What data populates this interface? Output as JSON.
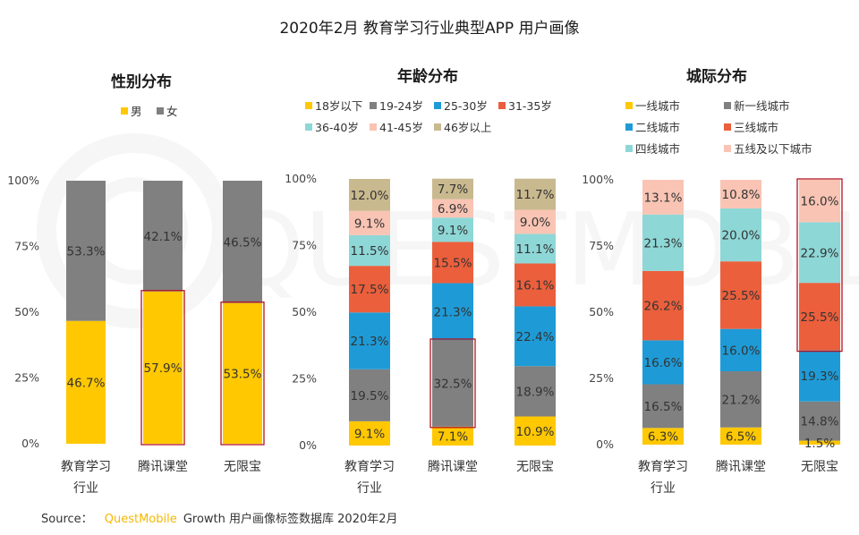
{
  "title": "2020年2月 教育学习行业典型APP 用户画像",
  "source": {
    "prefix": "Source：",
    "brand": "QuestMobile",
    "rest": "Growth 用户画像标签数据库 2020年2月"
  },
  "watermark": "QUESTMOBILE",
  "colors": {
    "yellow": "#FFC800",
    "gray": "#808080",
    "blue": "#1E9BD7",
    "red": "#EB5F3C",
    "teal": "#8ED7D7",
    "pink": "#F9C4B4",
    "khaki": "#C9B98E",
    "highlight": "#B3121F"
  },
  "chart_data": [
    {
      "type": "bar",
      "stacked": true,
      "percent": true,
      "title": "性别分布",
      "categories": [
        "教育学习\n行业",
        "腾讯课堂",
        "无限宝"
      ],
      "y_ticks": [
        "0%",
        "25%",
        "50%",
        "75%",
        "100%"
      ],
      "ylim": [
        0,
        100
      ],
      "legend_columns": 2,
      "series": [
        {
          "name": "男",
          "color": "yellow",
          "values": [
            46.7,
            57.9,
            53.5
          ],
          "labels": [
            "46.7%",
            "57.9%",
            "53.5%"
          ]
        },
        {
          "name": "女",
          "color": "gray",
          "values": [
            53.3,
            42.1,
            46.5
          ],
          "labels": [
            "53.3%",
            "42.1%",
            "46.5%"
          ]
        }
      ],
      "highlights": [
        {
          "category": 1,
          "from": 0,
          "to": 57.9
        },
        {
          "category": 2,
          "from": 0,
          "to": 53.5
        }
      ]
    },
    {
      "type": "bar",
      "stacked": true,
      "percent": true,
      "title": "年龄分布",
      "categories": [
        "教育学习\n行业",
        "腾讯课堂",
        "无限宝"
      ],
      "y_ticks": [
        "0%",
        "25%",
        "50%",
        "75%",
        "100%"
      ],
      "ylim": [
        0,
        100
      ],
      "legend_columns": 4,
      "series": [
        {
          "name": "18岁以下",
          "color": "yellow",
          "values": [
            9.1,
            7.1,
            10.9
          ],
          "labels": [
            "9.1%",
            "7.1%",
            "10.9%"
          ]
        },
        {
          "name": "19-24岁",
          "color": "gray",
          "values": [
            19.5,
            32.5,
            18.9
          ],
          "labels": [
            "19.5%",
            "32.5%",
            "18.9%"
          ]
        },
        {
          "name": "25-30岁",
          "color": "blue",
          "values": [
            21.3,
            21.3,
            22.4
          ],
          "labels": [
            "21.3%",
            "21.3%",
            "22.4%"
          ]
        },
        {
          "name": "31-35岁",
          "color": "red",
          "values": [
            17.5,
            15.5,
            16.1
          ],
          "labels": [
            "17.5%",
            "15.5%",
            "16.1%"
          ]
        },
        {
          "name": "36-40岁",
          "color": "teal",
          "values": [
            11.5,
            9.1,
            11.1
          ],
          "labels": [
            "11.5%",
            "9.1%",
            "11.1%"
          ]
        },
        {
          "name": "41-45岁",
          "color": "pink",
          "values": [
            9.1,
            6.9,
            9.0
          ],
          "labels": [
            "9.1%",
            "6.9%",
            "9.0%"
          ]
        },
        {
          "name": "46岁以上",
          "color": "khaki",
          "values": [
            12.0,
            7.7,
            11.7
          ],
          "labels": [
            "12.0%",
            "7.7%",
            "11.7%"
          ]
        }
      ],
      "highlights": [
        {
          "category": 1,
          "from": 7.1,
          "to": 39.6
        }
      ]
    },
    {
      "type": "bar",
      "stacked": true,
      "percent": true,
      "title": "城际分布",
      "categories": [
        "教育学习\n行业",
        "腾讯课堂",
        "无限宝"
      ],
      "y_ticks": [
        "0%",
        "25%",
        "50%",
        "75%",
        "100%"
      ],
      "ylim": [
        0,
        100
      ],
      "legend_columns": 2,
      "series": [
        {
          "name": "一线城市",
          "color": "yellow",
          "values": [
            6.3,
            6.5,
            1.5
          ],
          "labels": [
            "6.3%",
            "6.5%",
            "1.5%"
          ]
        },
        {
          "name": "新一线城市",
          "color": "gray",
          "values": [
            16.5,
            21.2,
            14.8
          ],
          "labels": [
            "16.5%",
            "21.2%",
            "14.8%"
          ]
        },
        {
          "name": "二线城市",
          "color": "blue",
          "values": [
            16.6,
            16.0,
            19.3
          ],
          "labels": [
            "16.6%",
            "16.0%",
            "19.3%"
          ]
        },
        {
          "name": "三线城市",
          "color": "red",
          "values": [
            26.2,
            25.5,
            25.5
          ],
          "labels": [
            "26.2%",
            "25.5%",
            "25.5%"
          ]
        },
        {
          "name": "四线城市",
          "color": "teal",
          "values": [
            21.3,
            20.0,
            22.9
          ],
          "labels": [
            "21.3%",
            "20.0%",
            "22.9%"
          ]
        },
        {
          "name": "五线及以下城市",
          "color": "pink",
          "values": [
            13.1,
            10.8,
            16.0
          ],
          "labels": [
            "13.1%",
            "10.8%",
            "16.0%"
          ]
        }
      ],
      "highlights": [
        {
          "category": 2,
          "from": 35.6,
          "to": 100
        }
      ]
    }
  ]
}
